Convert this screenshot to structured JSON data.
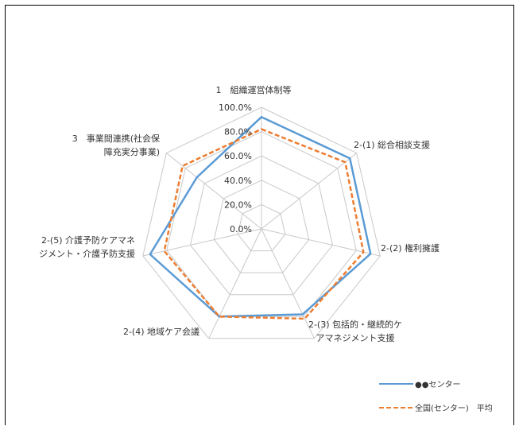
{
  "chart_data": {
    "type": "radar",
    "axes": [
      [
        "1　組織運営体制等"
      ],
      [
        "2-(1) 総合相談支援"
      ],
      [
        "2-(2) 権利擁護"
      ],
      [
        "2-(3) 包括的・継続的ケ",
        "アマネジメント支援"
      ],
      [
        "2-(4) 地域ケア会議"
      ],
      [
        "2-(5) 介護予防ケアマネ",
        "ジメント・介護予防支援"
      ],
      [
        "3　事業間連携(社会保",
        "障充実分事業)"
      ]
    ],
    "ticks": [
      "0.0%",
      "20.0%",
      "40.0%",
      "60.0%",
      "80.0%",
      "100.0%"
    ],
    "rmin": 0,
    "rmax": 100,
    "series": [
      {
        "name": "●●センター",
        "color": "#5b9bd5",
        "dash": "solid",
        "values": [
          92,
          93,
          92,
          78,
          80,
          94,
          68
        ]
      },
      {
        "name": "全国(センター)　平均",
        "color": "#ed7d31",
        "dash": "dashed",
        "values": [
          82,
          88,
          86,
          82,
          80,
          82,
          83
        ]
      }
    ],
    "legend_position": "bottom-right",
    "grid": true
  }
}
